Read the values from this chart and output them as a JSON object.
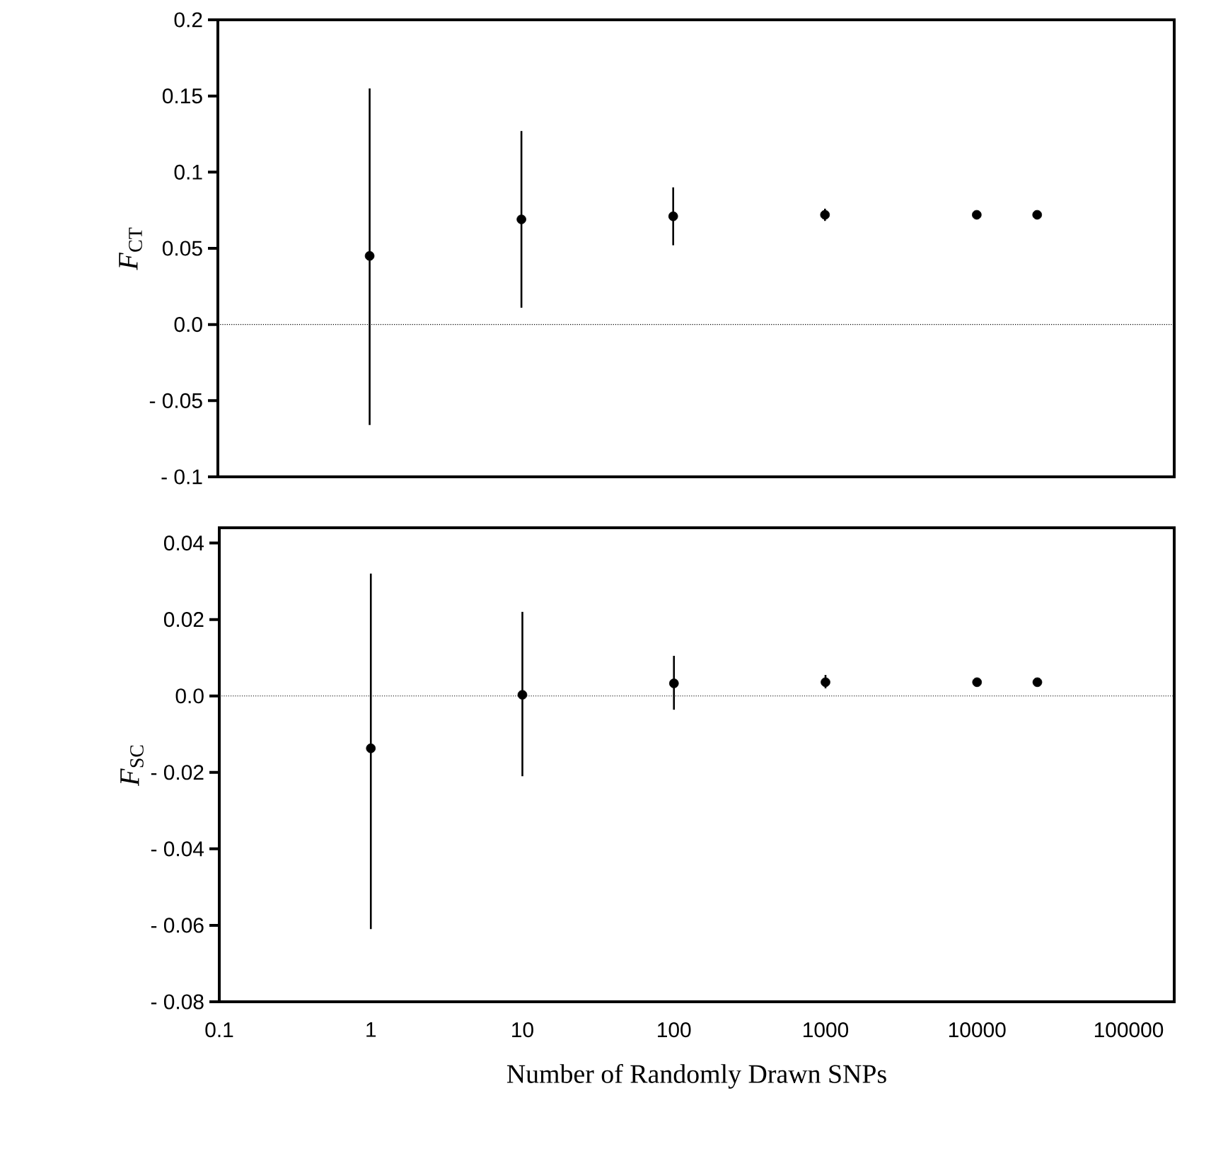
{
  "chart_data": [
    {
      "type": "scatter",
      "ylabel": "*F*$_{CT}$",
      "xlim": [
        0.1,
        200000
      ],
      "log": "x",
      "tick_labels": "y",
      "marker": "circle",
      "ylim": [
        -0.1,
        0.2
      ],
      "yticks": [
        {
          "value": -0.1,
          "label": "- 0.1"
        },
        {
          "value": -0.05,
          "label": "- 0.05"
        },
        {
          "value": 0,
          "label": "0.0"
        },
        0.05,
        0.1,
        0.15,
        0.2
      ],
      "ref_lines": [
        {
          "axis": "y",
          "value": 0,
          "line_style": "dotted"
        }
      ],
      "series": [
        {
          "color": "#000000",
          "x": [
            1,
            10,
            100,
            1000,
            10000,
            25000
          ],
          "values": [
            0.045,
            0.069,
            0.071,
            0.072,
            0.072,
            0.072
          ],
          "errors": [
            [
              -0.066,
              0.155
            ],
            [
              0.011,
              0.127
            ],
            [
              0.052,
              0.09
            ],
            [
              0.068,
              0.076
            ],
            null,
            null
          ]
        }
      ]
    },
    {
      "type": "scatter",
      "ylabel": "*F*$_{SC}$",
      "xlabel": "Number of Randomly Drawn SNPs",
      "xlim": [
        0.1,
        200000
      ],
      "log": "x",
      "marker": "circle",
      "xticks": [
        0.1,
        1,
        10,
        100,
        1000,
        10000,
        100000
      ],
      "ylim": [
        -0.08,
        0.044
      ],
      "yticks": [
        {
          "value": -0.08,
          "label": "- 0.08"
        },
        {
          "value": -0.06,
          "label": "- 0.06"
        },
        {
          "value": -0.04,
          "label": "- 0.04"
        },
        {
          "value": -0.02,
          "label": "- 0.02"
        },
        {
          "value": 0,
          "label": "0.0"
        },
        0.02,
        0.04
      ],
      "ref_lines": [
        {
          "axis": "y",
          "value": 0,
          "line_style": "dotted"
        }
      ],
      "series": [
        {
          "color": "#000000",
          "x": [
            1,
            10,
            100,
            1000,
            10000,
            25000
          ],
          "values": [
            -0.0137,
            0.0003,
            0.0033,
            0.0036,
            0.0036,
            0.0036
          ],
          "errors": [
            [
              -0.061,
              0.032
            ],
            [
              -0.021,
              0.022
            ],
            [
              -0.0036,
              0.0105
            ],
            [
              0.002,
              0.0055
            ],
            null,
            null
          ]
        }
      ]
    }
  ]
}
